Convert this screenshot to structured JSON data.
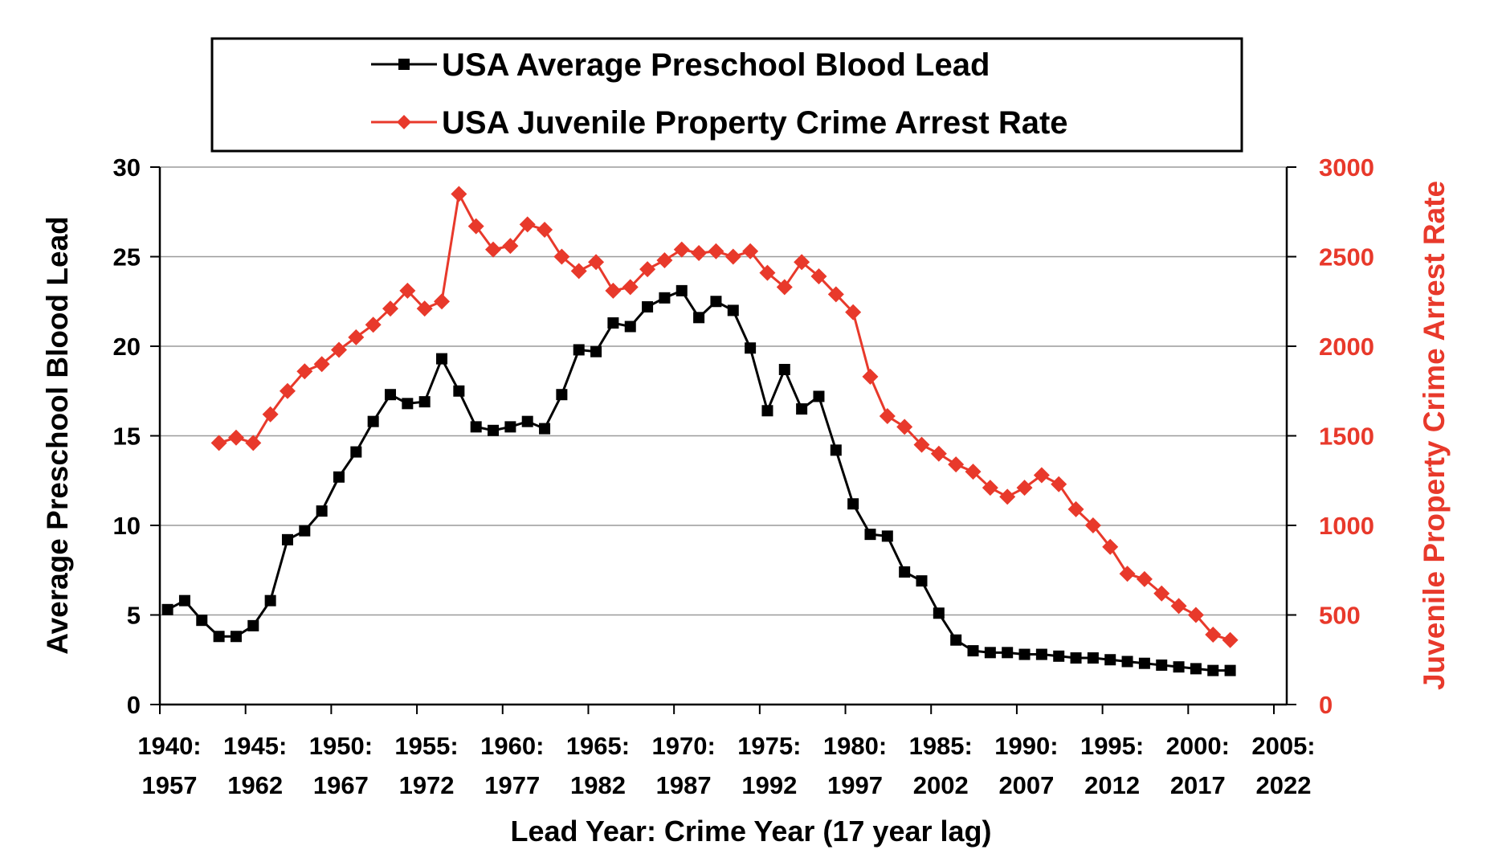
{
  "chart_data": {
    "type": "line",
    "title": "",
    "xlabel": "Lead Year: Crime Year (17 year lag)",
    "ylabel_left": "Average Preschool Blood Lead",
    "ylabel_right": "Juvenile Property Crime Arrest Rate",
    "ylim_left": [
      0,
      30
    ],
    "ylim_right": [
      0,
      3000
    ],
    "yticks_left": [
      "0",
      "5",
      "10",
      "15",
      "20",
      "25",
      "30"
    ],
    "yticks_right": [
      "0",
      "500",
      "1000",
      "1500",
      "2000",
      "2500",
      "3000"
    ],
    "xlim": [
      1940,
      2006
    ],
    "xticks": [
      {
        "top": "1940:",
        "bottom": "1957"
      },
      {
        "top": "1945:",
        "bottom": "1962"
      },
      {
        "top": "1950:",
        "bottom": "1967"
      },
      {
        "top": "1955:",
        "bottom": "1972"
      },
      {
        "top": "1960:",
        "bottom": "1977"
      },
      {
        "top": "1965:",
        "bottom": "1982"
      },
      {
        "top": "1970:",
        "bottom": "1987"
      },
      {
        "top": "1975:",
        "bottom": "1992"
      },
      {
        "top": "1980:",
        "bottom": "1997"
      },
      {
        "top": "1985:",
        "bottom": "2002"
      },
      {
        "top": "1990:",
        "bottom": "2007"
      },
      {
        "top": "1995:",
        "bottom": "2012"
      },
      {
        "top": "2000:",
        "bottom": "2017"
      },
      {
        "top": "2005:",
        "bottom": "2022"
      }
    ],
    "grid": true,
    "legend_placement": "top",
    "series": [
      {
        "name": "USA Average Preschool Blood Lead",
        "axis": "left",
        "color": "#000000",
        "marker": "square",
        "x_start": 1940,
        "values": [
          5.3,
          5.8,
          4.7,
          3.8,
          3.8,
          4.4,
          5.8,
          9.2,
          9.7,
          10.8,
          12.7,
          14.1,
          15.8,
          17.3,
          16.8,
          16.9,
          19.3,
          17.5,
          15.5,
          15.3,
          15.5,
          15.8,
          15.4,
          17.3,
          19.8,
          19.7,
          21.3,
          21.1,
          22.2,
          22.7,
          23.1,
          21.6,
          22.5,
          22.0,
          19.9,
          16.4,
          18.7,
          16.5,
          17.2,
          14.2,
          11.2,
          9.5,
          9.4,
          7.4,
          6.9,
          5.1,
          3.6,
          3.0,
          2.9,
          2.9,
          2.8,
          2.8,
          2.7,
          2.6,
          2.6,
          2.5,
          2.4,
          2.3,
          2.2,
          2.1,
          2.0,
          1.9,
          1.9
        ]
      },
      {
        "name": "USA Juvenile Property Crime Arrest Rate",
        "axis": "right",
        "color": "#e8392b",
        "marker": "diamond",
        "x_start": 1943,
        "values": [
          1460,
          1490,
          1460,
          1620,
          1750,
          1860,
          1900,
          1980,
          2050,
          2120,
          2210,
          2310,
          2210,
          2250,
          2850,
          2670,
          2540,
          2560,
          2680,
          2650,
          2500,
          2420,
          2470,
          2310,
          2330,
          2430,
          2480,
          2540,
          2520,
          2530,
          2500,
          2530,
          2410,
          2330,
          2470,
          2390,
          2290,
          2190,
          1830,
          1610,
          1550,
          1450,
          1400,
          1340,
          1300,
          1210,
          1160,
          1210,
          1280,
          1230,
          1090,
          1000,
          880,
          730,
          700,
          620,
          550,
          500,
          390,
          360
        ]
      }
    ]
  }
}
